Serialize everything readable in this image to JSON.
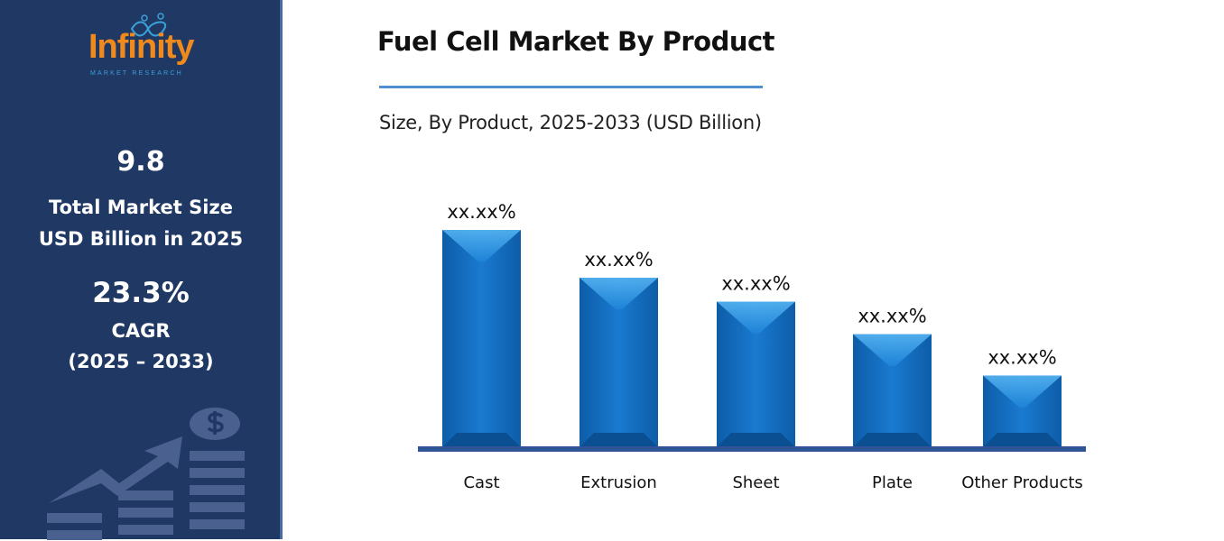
{
  "sidebar": {
    "logo_text": "Infinity",
    "logo_subtext": "MARKET RESEARCH",
    "market_size_value": "9.8",
    "market_size_label_1": "Total Market Size",
    "market_size_label_2": "USD Billion in 2025",
    "cagr_value": "23.3%",
    "cagr_label": "CAGR",
    "cagr_period": "(2025 – 2033)",
    "icon": "growth-chart-dollar-icon"
  },
  "colors": {
    "sidebar": "#203864",
    "bar": "#1a78c8",
    "axis": "#2f5597",
    "logo": "#f08a1c"
  },
  "chart_data": {
    "type": "bar",
    "title": "Fuel Cell Market By Product",
    "subtitle": "Size, By Product, 2025-2033 (USD Billion)",
    "categories": [
      "Cast",
      "Extrusion",
      "Sheet",
      "Plate",
      "Other Products"
    ],
    "values": [
      100,
      78,
      67,
      52,
      33
    ],
    "data_labels": [
      "xx.xx%",
      "xx.xx%",
      "xx.xx%",
      "xx.xx%",
      "xx.xx%"
    ],
    "ylim": [
      0,
      100
    ],
    "grid": false,
    "legend": "none"
  }
}
